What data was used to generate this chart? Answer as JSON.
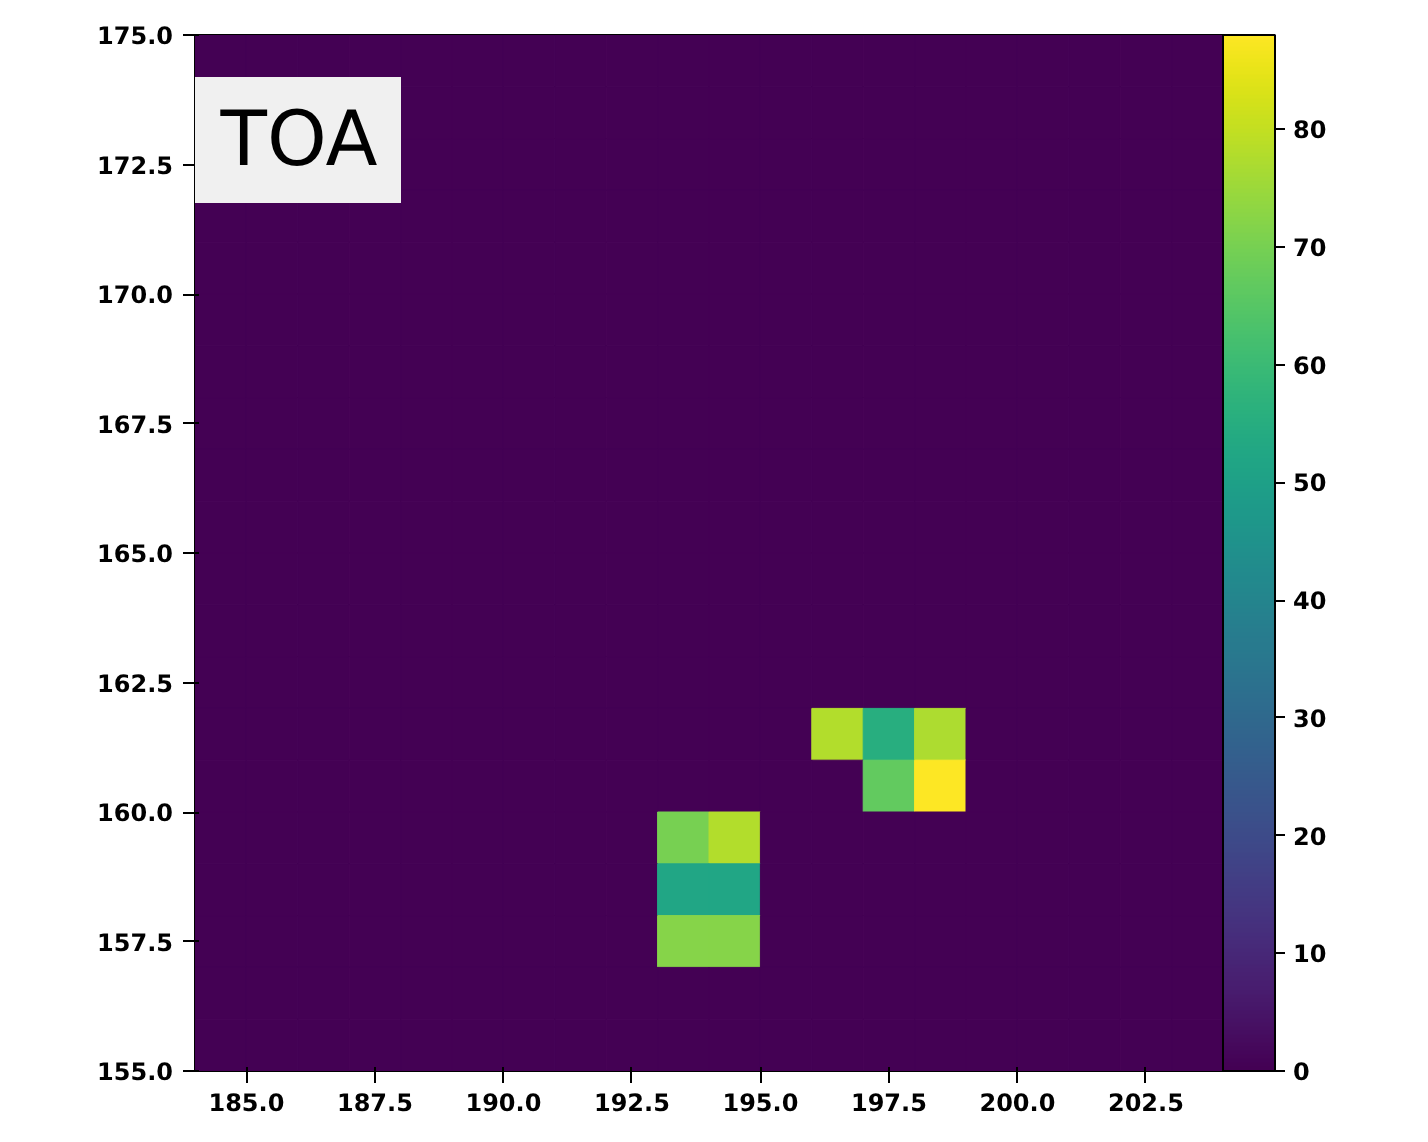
{
  "chart_data": {
    "type": "heatmap",
    "annotations": [
      "TOA"
    ],
    "x": [
      184.5,
      185.5,
      186.5,
      187.5,
      188.5,
      189.5,
      190.5,
      191.5,
      192.5,
      193.5,
      194.5,
      195.5,
      196.5,
      197.5,
      198.5,
      199.5,
      200.5,
      201.5,
      202.5,
      203.5
    ],
    "y": [
      174.5,
      173.5,
      172.5,
      171.5,
      170.5,
      169.5,
      168.5,
      167.5,
      166.5,
      165.5,
      164.5,
      163.5,
      162.5,
      161.5,
      160.5,
      159.5,
      158.5,
      157.5,
      156.5,
      155.5
    ],
    "xlim": [
      184,
      204
    ],
    "xticks": [
      {
        "value": 185,
        "label": "185.0"
      },
      {
        "value": 187.5,
        "label": "187.5"
      },
      {
        "value": 190,
        "label": "190.0"
      },
      {
        "value": 192.5,
        "label": "192.5"
      },
      {
        "value": 195,
        "label": "195.0"
      },
      {
        "value": 197.5,
        "label": "197.5"
      },
      {
        "value": 200,
        "label": "200.0"
      },
      {
        "value": 202.5,
        "label": "202.5"
      }
    ],
    "ylim": [
      155,
      175
    ],
    "yticks": [
      {
        "value": 155,
        "label": "155.0"
      },
      {
        "value": 157.5,
        "label": "157.5"
      },
      {
        "value": 160,
        "label": "160.0"
      },
      {
        "value": 162.5,
        "label": "162.5"
      },
      {
        "value": 165,
        "label": "165.0"
      },
      {
        "value": 167.5,
        "label": "167.5"
      },
      {
        "value": 170,
        "label": "170.0"
      },
      {
        "value": 172.5,
        "label": "172.5"
      },
      {
        "value": 175,
        "label": "175.0"
      }
    ],
    "clim": [
      0,
      88
    ],
    "cticks": [
      0,
      10,
      20,
      30,
      40,
      50,
      60,
      70,
      80
    ],
    "cells": [
      [
        0,
        0,
        0,
        0,
        0,
        0,
        0,
        0,
        0,
        0,
        0,
        0,
        0,
        0,
        0,
        0,
        0,
        0,
        0,
        0
      ],
      [
        null,
        null,
        null,
        null,
        0,
        0,
        0,
        0,
        0,
        0,
        0,
        0,
        0,
        0,
        0,
        0,
        0,
        0,
        0,
        0
      ],
      [
        null,
        null,
        null,
        null,
        0,
        0,
        0,
        0,
        0,
        0,
        0,
        0,
        0,
        0,
        0,
        0,
        0,
        0,
        0,
        0
      ],
      [
        0,
        0,
        0,
        0,
        0,
        0,
        0,
        0,
        0,
        0,
        0,
        0,
        0,
        0,
        0,
        0,
        0,
        0,
        0,
        0
      ],
      [
        0,
        0,
        0,
        0,
        0,
        0,
        0,
        0,
        0,
        0,
        0,
        0,
        0,
        0,
        0,
        0,
        0,
        0,
        0,
        0
      ],
      [
        0,
        0,
        0,
        0,
        0,
        0,
        0,
        0,
        0,
        0,
        0,
        0,
        0,
        0,
        0,
        0,
        0,
        0,
        0,
        0
      ],
      [
        0,
        0,
        0,
        0,
        0,
        0,
        0,
        0,
        0,
        0,
        0,
        0,
        0,
        0,
        0,
        0,
        0,
        0,
        0,
        0
      ],
      [
        0,
        0,
        0,
        0,
        0,
        0,
        0,
        0,
        0,
        0,
        0,
        0,
        0,
        0,
        0,
        0,
        0,
        0,
        0,
        0
      ],
      [
        0,
        0,
        0,
        0,
        0,
        0,
        0,
        0,
        0,
        0,
        0,
        0,
        0,
        0,
        0,
        0,
        0,
        0,
        0,
        0
      ],
      [
        0,
        0,
        0,
        0,
        0,
        0,
        0,
        0,
        0,
        0,
        0,
        0,
        0,
        0,
        0,
        0,
        0,
        0,
        0,
        0
      ],
      [
        0,
        0,
        0,
        0,
        0,
        0,
        0,
        0,
        0,
        0,
        0,
        0,
        0,
        0,
        0,
        0,
        0,
        0,
        0,
        0
      ],
      [
        0,
        0,
        0,
        0,
        0,
        0,
        0,
        0,
        0,
        0,
        0,
        0,
        0,
        0,
        0,
        0,
        0,
        0,
        0,
        0
      ],
      [
        0,
        0,
        0,
        0,
        0,
        0,
        0,
        0,
        0,
        0,
        0,
        0,
        0,
        0,
        0,
        0,
        0,
        0,
        0,
        0
      ],
      [
        0,
        0,
        0,
        0,
        0,
        0,
        0,
        0,
        0,
        0,
        0,
        0,
        78,
        55,
        77,
        0,
        0,
        0,
        0,
        0
      ],
      [
        0,
        0,
        0,
        0,
        0,
        0,
        0,
        0,
        0,
        0,
        0,
        0,
        0,
        67,
        88,
        0,
        0,
        0,
        0,
        0
      ],
      [
        0,
        0,
        0,
        0,
        0,
        0,
        0,
        0,
        0,
        70,
        78,
        0,
        0,
        0,
        0,
        0,
        0,
        0,
        0,
        0
      ],
      [
        0,
        0,
        0,
        0,
        0,
        0,
        0,
        0,
        0,
        52,
        52,
        0,
        0,
        0,
        0,
        0,
        0,
        0,
        0,
        0
      ],
      [
        0,
        0,
        0,
        0,
        0,
        0,
        0,
        0,
        0,
        72,
        72,
        0,
        0,
        0,
        0,
        0,
        0,
        0,
        0,
        0
      ],
      [
        0,
        0,
        0,
        0,
        0,
        0,
        0,
        0,
        0,
        0,
        0,
        0,
        0,
        0,
        0,
        0,
        0,
        0,
        0,
        0
      ],
      [
        0,
        0,
        0,
        0,
        0,
        0,
        0,
        0,
        0,
        0,
        0,
        0,
        0,
        0,
        0,
        0,
        0,
        0,
        0,
        0
      ]
    ]
  }
}
